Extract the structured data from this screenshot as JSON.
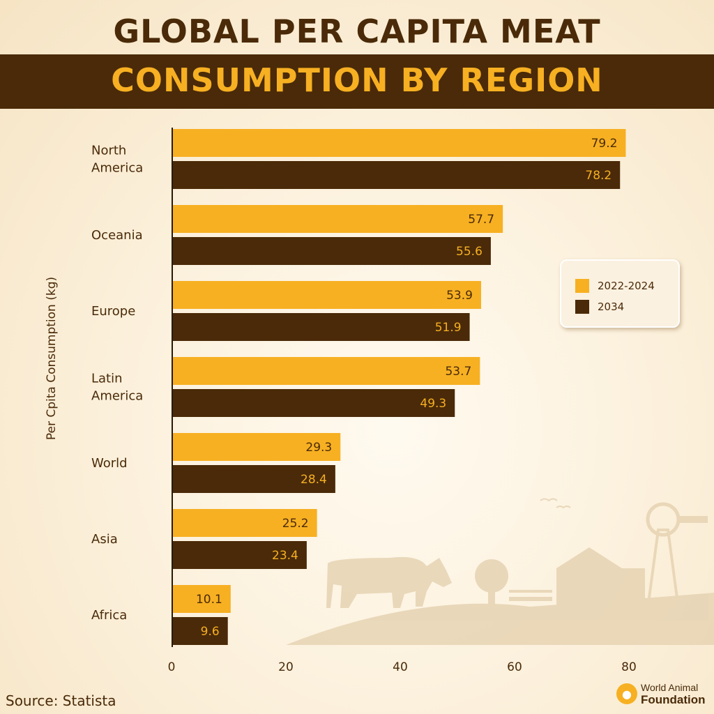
{
  "colors": {
    "primary": "#f7b022",
    "secondary": "#4a2a08",
    "label_on_primary": "#4a2a08",
    "label_on_secondary": "#f7b022"
  },
  "chart_data": {
    "type": "bar",
    "orientation": "horizontal",
    "title_line1": "GLOBAL PER CAPITA MEAT",
    "title_line2": "CONSUMPTION BY REGION",
    "ylabel": "Per Cpita Consumption (kg)",
    "xlabel": "",
    "categories": [
      [
        "North",
        "America"
      ],
      [
        "Oceania"
      ],
      [
        "Europe"
      ],
      [
        "Latin",
        "America"
      ],
      [
        "World"
      ],
      [
        "Asia"
      ],
      [
        "Africa"
      ]
    ],
    "series": [
      {
        "name": "2022-2024",
        "values": [
          79.2,
          57.7,
          53.9,
          53.7,
          29.3,
          25.2,
          10.1
        ]
      },
      {
        "name": "2034",
        "values": [
          78.2,
          55.6,
          51.9,
          49.3,
          28.4,
          23.4,
          9.6
        ]
      }
    ],
    "xlim": [
      0,
      80
    ],
    "xticks": [
      0,
      20,
      40,
      60,
      80
    ],
    "legend": "right",
    "grid": false
  },
  "footer": {
    "source": "Source: Statista",
    "brand_top": "World Animal",
    "brand_bottom": "Foundation"
  }
}
